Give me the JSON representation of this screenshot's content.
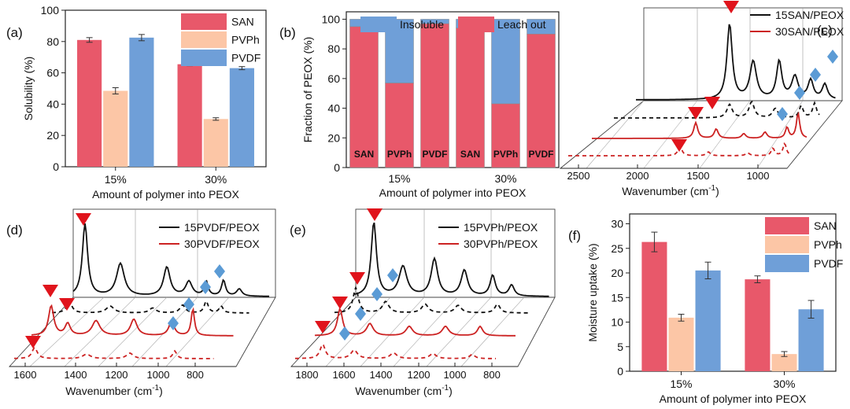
{
  "panel_labels": [
    "(a)",
    "(b)",
    "(c)",
    "(d)",
    "(e)",
    "(f)"
  ],
  "colors": {
    "san": "#e8586a",
    "pvph": "#fcc6a6",
    "pvdf": "#6f9fd8",
    "black_trace": "#111111",
    "red_trace": "#cc2222",
    "marker_triangle": "#e0141c",
    "marker_diamond": "#5b9bd5"
  },
  "chart_data": [
    {
      "panel": "(a)",
      "type": "bar",
      "categories": [
        "15%",
        "30%"
      ],
      "series": [
        {
          "name": "SAN",
          "values": [
            81,
            65.5
          ],
          "errors": [
            1.5,
            1.0
          ]
        },
        {
          "name": "PVPh",
          "values": [
            48.5,
            30.5
          ],
          "errors": [
            2.0,
            0.8
          ]
        },
        {
          "name": "PVDF",
          "values": [
            82.5,
            63
          ],
          "errors": [
            2.0,
            1.0
          ]
        }
      ],
      "ylim": [
        0,
        100
      ],
      "yticks": [
        "0",
        "20",
        "40",
        "60",
        "80",
        "100"
      ],
      "ylabel": "Solubility (%)",
      "xlabel": "Amount of polymer into PEOX",
      "legend_placement": "top-right"
    },
    {
      "panel": "(b)",
      "type": "bar",
      "stacked": true,
      "categories": [
        "SAN",
        "PVPh",
        "PVDF",
        "SAN",
        "PVPh",
        "PVDF"
      ],
      "groups": [
        "15%",
        "30%"
      ],
      "series": [
        {
          "name": "Leach out",
          "values": [
            95,
            57,
            97,
            94,
            43,
            90
          ]
        },
        {
          "name": "Insoluble",
          "values": [
            5,
            43,
            3,
            6,
            57,
            10
          ]
        }
      ],
      "legend_order": [
        "Insoluble",
        "Leach out"
      ],
      "ylim": [
        0,
        105
      ],
      "yticks": [
        "0",
        "20",
        "40",
        "60",
        "80",
        "100"
      ],
      "ylabel": "Fraction of PEOX (%)",
      "xlabel": "Amount of polymer into PEOX",
      "legend_placement": "top"
    },
    {
      "panel": "(c)",
      "type": "line",
      "legend": [
        "15SAN/PEOX",
        "30SAN/PEOX"
      ],
      "xticks": [
        "2500",
        "2000",
        "1500",
        "1000"
      ],
      "xlabel": "Wavenumber (cm",
      "xlabel_sup": "-1",
      "xlabel_close": ")"
    },
    {
      "panel": "(d)",
      "type": "line",
      "legend": [
        "15PVDF/PEOX",
        "30PVDF/PEOX"
      ],
      "xticks": [
        "1600",
        "1400",
        "1200",
        "1000",
        "800"
      ],
      "xlabel": "Wavenumber (cm",
      "xlabel_sup": "-1",
      "xlabel_close": ")"
    },
    {
      "panel": "(e)",
      "type": "line",
      "legend": [
        "15PVPh/PEOX",
        "30PVPh/PEOX"
      ],
      "xticks": [
        "1800",
        "1600",
        "1400",
        "1200",
        "1000",
        "800"
      ],
      "xlabel": "Wavenumber (cm",
      "xlabel_sup": "-1",
      "xlabel_close": ")"
    },
    {
      "panel": "(f)",
      "type": "bar",
      "categories": [
        "15%",
        "30%"
      ],
      "series": [
        {
          "name": "SAN",
          "values": [
            26.3,
            18.7
          ],
          "errors": [
            2.0,
            0.7
          ]
        },
        {
          "name": "PVPh",
          "values": [
            10.9,
            3.5
          ],
          "errors": [
            0.7,
            0.5
          ]
        },
        {
          "name": "PVDF",
          "values": [
            20.5,
            12.6
          ],
          "errors": [
            1.7,
            1.8
          ]
        }
      ],
      "ylim": [
        0,
        32
      ],
      "yticks": [
        "0",
        "5",
        "10",
        "15",
        "20",
        "25",
        "30"
      ],
      "ylabel": "Moisture uptake (%)",
      "xlabel": "Amount of polymer into PEOX",
      "legend_placement": "top-right"
    }
  ]
}
